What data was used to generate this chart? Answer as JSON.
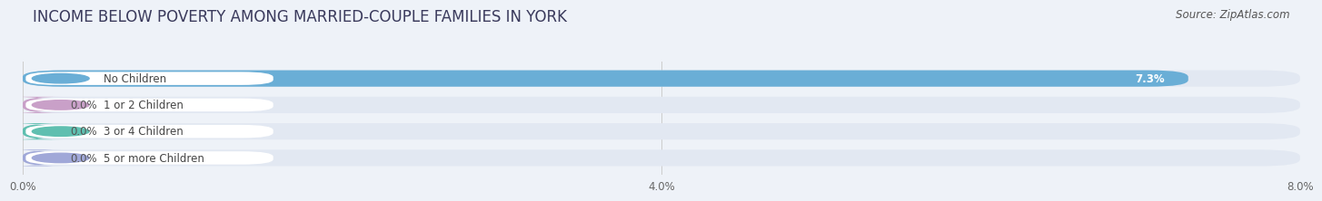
{
  "title": "INCOME BELOW POVERTY AMONG MARRIED-COUPLE FAMILIES IN YORK",
  "source": "Source: ZipAtlas.com",
  "categories": [
    "No Children",
    "1 or 2 Children",
    "3 or 4 Children",
    "5 or more Children"
  ],
  "values": [
    7.3,
    0.0,
    0.0,
    0.0
  ],
  "bar_colors": [
    "#6aaed6",
    "#c9a0c8",
    "#5fbfb0",
    "#a0a8d8"
  ],
  "xlim": [
    0,
    8.0
  ],
  "xticks": [
    0.0,
    4.0,
    8.0
  ],
  "xticklabels": [
    "0.0%",
    "4.0%",
    "8.0%"
  ],
  "background_color": "#eef2f8",
  "bar_background_color": "#e2e8f2",
  "title_fontsize": 12,
  "source_fontsize": 8.5,
  "label_fontsize": 8.5,
  "value_fontsize": 8.5
}
